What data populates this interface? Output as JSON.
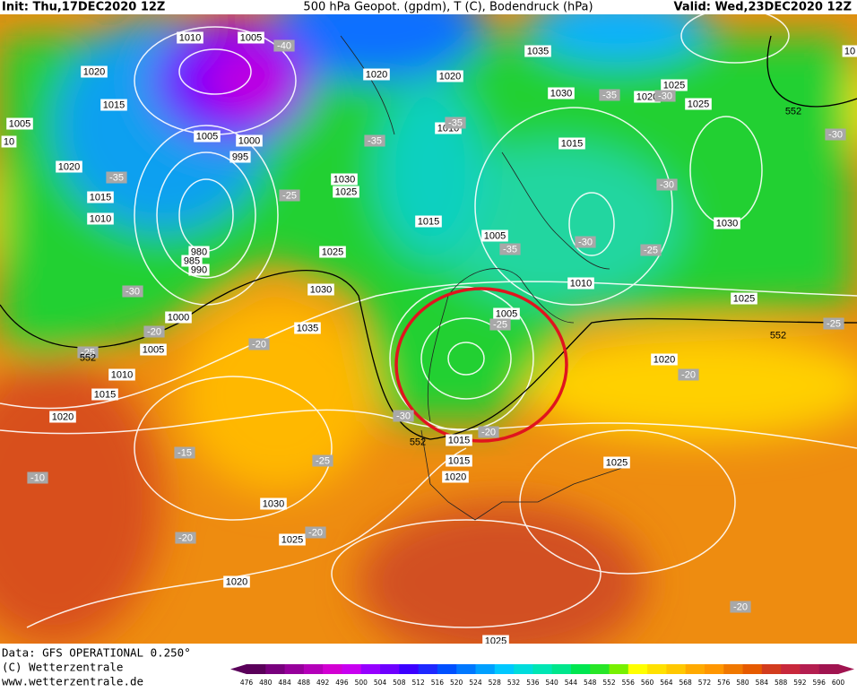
{
  "header": {
    "init": "Init: Thu,17DEC2020 12Z",
    "title": "500 hPa Geopot. (gpdm), T (C), Bodendruck (hPa)",
    "valid": "Valid: Wed,23DEC2020 12Z"
  },
  "footer": {
    "data": "Data: GFS OPERATIONAL 0.250°",
    "copyright": "(C) Wetterzentrale",
    "url": "www.wetterzentrale.de"
  },
  "map": {
    "isobar_labels": [
      1010,
      1005,
      1020,
      1015,
      1005,
      10,
      1020,
      1020,
      1035,
      1030,
      1020,
      1025,
      1025,
      1010,
      1015,
      1005,
      1000,
      995,
      1020,
      1015,
      1010,
      1030,
      1025,
      1015,
      1005,
      1030,
      980,
      985,
      990,
      1025,
      1030,
      1010,
      1025,
      1005,
      1000,
      1035,
      1005,
      1020,
      1010,
      1015,
      1020,
      1015,
      1020,
      1025,
      1030,
      1025,
      1020,
      1025,
      10,
      1015
    ],
    "temperature_labels": [
      -40,
      -35,
      -30,
      -35,
      -35,
      -35,
      -25,
      -30,
      -30,
      -25,
      -35,
      -30,
      -30,
      -20,
      -25,
      -20,
      -25,
      -25,
      -20,
      -30,
      -20,
      -15,
      -25,
      -10,
      -20,
      -20,
      -20
    ],
    "height_labels": [
      552,
      552,
      552,
      552
    ]
  },
  "legend": {
    "ticks": [
      476,
      480,
      484,
      488,
      492,
      496,
      500,
      504,
      508,
      512,
      516,
      520,
      524,
      528,
      532,
      536,
      540,
      544,
      548,
      552,
      556,
      560,
      564,
      568,
      572,
      576,
      580,
      584,
      588,
      592,
      596,
      600
    ],
    "colors": [
      "#5a005a",
      "#78007d",
      "#96009b",
      "#b400b9",
      "#d200d2",
      "#c800f0",
      "#9600ff",
      "#6e00ff",
      "#3c00ff",
      "#1e28ff",
      "#0050ff",
      "#0078ff",
      "#00a0ff",
      "#00c8ff",
      "#00dcdc",
      "#00e6b4",
      "#00e68c",
      "#00e650",
      "#28e628",
      "#78f000",
      "#ffff00",
      "#ffe100",
      "#ffc800",
      "#ffaa00",
      "#ff9600",
      "#f07800",
      "#e65a00",
      "#d23c1e",
      "#c8283c",
      "#b41e50",
      "#a01450"
    ]
  }
}
